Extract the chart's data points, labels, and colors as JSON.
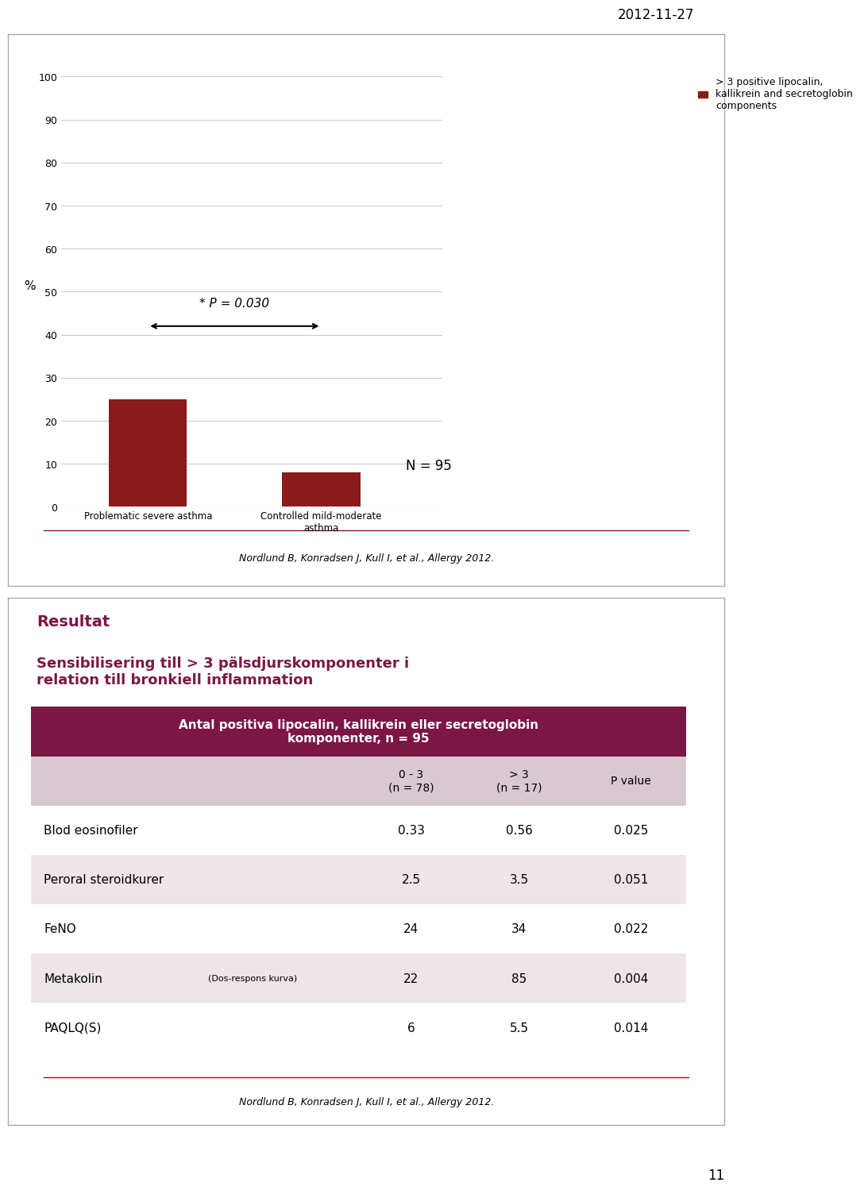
{
  "date_text": "2012-11-27",
  "page_number": "11",
  "slide1": {
    "bar_values": [
      25,
      8
    ],
    "bar_categories": [
      "Problematic severe asthma",
      "Controlled mild-moderate\nasthma"
    ],
    "bar_color": "#8B1A1A",
    "ylabel": "%",
    "ylim": [
      0,
      100
    ],
    "yticks": [
      0,
      10,
      20,
      30,
      40,
      50,
      60,
      70,
      80,
      90,
      100
    ],
    "annotation_text": "* P = 0.030",
    "legend_label": "> 3 positive lipocalin,\nkallikrein and secretoglobin\ncomponents",
    "n_text": "N = 95",
    "reference": "Nordlund B, Konradsen J, Kull I, et al., Allergy 2012."
  },
  "slide2": {
    "title_line1": "Resultat",
    "title_line2": "Sensibilisering till > 3 pälsdjurskomponenter i\nrelation till bronkiell inflammation",
    "title_color": "#7B1645",
    "table_header": "Antal positiva lipocalin, kallikrein eller secretoglobin\nkomponenter, n = 95",
    "table_header_bg": "#7B1645",
    "table_header_color": "#FFFFFF",
    "col_headers": [
      "0 - 3\n(n = 78)",
      "> 3\n(n = 17)",
      "P value"
    ],
    "col_header_bg": "#D8C8D0",
    "rows": [
      {
        "label": "Blod eosinofiler",
        "label_small": "",
        "v1": "0.33",
        "v2": "0.56",
        "pval": "0.025",
        "bg": "#FFFFFF"
      },
      {
        "label": "Peroral steroidkurer",
        "label_small": "",
        "v1": "2.5",
        "v2": "3.5",
        "pval": "0.051",
        "bg": "#EDE5E8"
      },
      {
        "label": "FeNO",
        "label_small": "",
        "v1": "24",
        "v2": "34",
        "pval": "0.022",
        "bg": "#FFFFFF"
      },
      {
        "label": "Metakolin",
        "label_small": "(Dos-respons kurva)",
        "v1": "22",
        "v2": "85",
        "pval": "0.004",
        "bg": "#EDE5E8"
      },
      {
        "label": "PAQLQ(S)",
        "label_small": "",
        "v1": "6",
        "v2": "5.5",
        "pval": "0.014",
        "bg": "#FFFFFF"
      }
    ],
    "reference": "Nordlund B, Konradsen J, Kull I, et al., Allergy 2012."
  }
}
